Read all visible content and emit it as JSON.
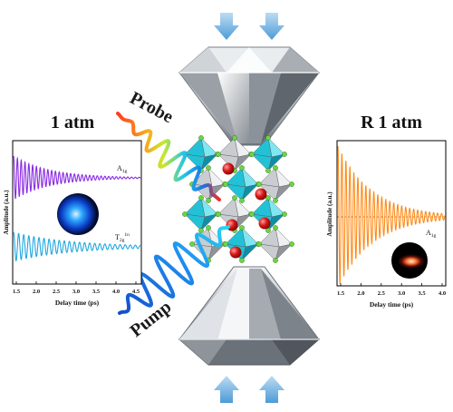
{
  "labels": {
    "probe": "Probe",
    "pump": "Pump",
    "left_title": "1 atm",
    "right_title": "R 1 atm"
  },
  "left_panel": {
    "ylabel": "Amplitude (a.u.)",
    "xlabel": "Delay time (ps)",
    "series_top": {
      "base": "A",
      "sub": "1g"
    },
    "series_bottom": {
      "base": "T",
      "sub": "2g",
      "sup": "1n"
    },
    "xticks": [
      "1.5",
      "2.0",
      "2.5",
      "3.0",
      "3.5",
      "4.0",
      "4.5"
    ]
  },
  "right_panel": {
    "ylabel": "Amplitude (a.u.)",
    "xlabel": "Delay time (ps)",
    "series": {
      "base": "A",
      "sub": "1g"
    },
    "xticks": [
      "1.5",
      "2.0",
      "2.5",
      "3.0",
      "3.5",
      "4.0"
    ]
  },
  "colors": {
    "purple": "#8a2be2",
    "cyan": "#1fa8e0",
    "orange": "#ff8c1a",
    "arrow": "#5aa6dc",
    "octahedron_cyan": "#22c1d6",
    "octahedron_grey": "#c9ccd0",
    "atom_red": "#d41818",
    "atom_green": "#6bd644"
  },
  "chart_data": [
    {
      "type": "line",
      "title": "1 atm",
      "xlabel": "Delay time (ps)",
      "ylabel": "Amplitude (a.u.)",
      "xlim": [
        1.5,
        4.8
      ],
      "series": [
        {
          "name": "A1g",
          "model": "damped-cosine"
        },
        {
          "name": "T2g 1n",
          "model": "damped-cosine"
        }
      ]
    },
    {
      "type": "line",
      "title": "R 1 atm",
      "xlabel": "Delay time (ps)",
      "ylabel": "Amplitude (a.u.)",
      "xlim": [
        1.5,
        4.2
      ],
      "series": [
        {
          "name": "A1g",
          "model": "damped-cosine"
        }
      ]
    }
  ]
}
